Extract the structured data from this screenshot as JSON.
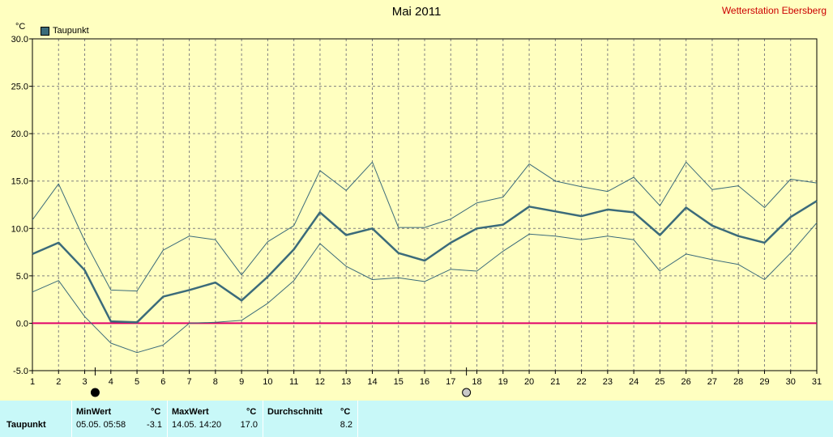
{
  "header": {
    "title": "Mai 2011",
    "station": "Wetterstation Ebersberg",
    "unit": "°C",
    "legend_label": "Taupunkt"
  },
  "colors": {
    "background": "#ffffc0",
    "series": "#3b6b7a",
    "zero_line": "#e0006a",
    "grid": "#808080",
    "stats_bg": "#c8f8f8"
  },
  "chart_data": {
    "type": "line",
    "title": "Mai 2011",
    "ylabel": "°C",
    "ylim": [
      -5,
      30
    ],
    "yticks": [
      "-5.0",
      "0.0",
      "5.0",
      "10.0",
      "15.0",
      "20.0",
      "25.0",
      "30.0"
    ],
    "x": [
      1,
      2,
      3,
      4,
      5,
      6,
      7,
      8,
      9,
      10,
      11,
      12,
      13,
      14,
      15,
      16,
      17,
      18,
      19,
      20,
      21,
      22,
      23,
      24,
      25,
      26,
      27,
      28,
      29,
      30,
      31
    ],
    "xlim": [
      1,
      31
    ],
    "grid": true,
    "series": [
      {
        "name": "Taupunkt",
        "role": "mean",
        "values": [
          7.3,
          8.5,
          5.6,
          0.2,
          0.1,
          2.8,
          3.5,
          4.3,
          2.4,
          4.9,
          7.8,
          11.7,
          9.3,
          10.0,
          7.4,
          6.6,
          8.5,
          10.0,
          10.4,
          12.3,
          11.8,
          11.3,
          12.0,
          11.7,
          9.3,
          12.2,
          10.3,
          9.2,
          8.5,
          11.2,
          12.9
        ]
      },
      {
        "role": "max",
        "values": [
          10.9,
          14.7,
          8.7,
          3.5,
          3.4,
          7.7,
          9.2,
          8.8,
          5.1,
          8.6,
          10.3,
          16.1,
          14.0,
          17.0,
          10.1,
          10.1,
          11.0,
          12.7,
          13.3,
          16.8,
          15.0,
          14.4,
          13.9,
          15.4,
          12.4,
          17.0,
          14.1,
          14.5,
          12.2,
          15.2,
          14.8
        ]
      },
      {
        "role": "min",
        "values": [
          3.3,
          4.5,
          0.7,
          -2.1,
          -3.1,
          -2.3,
          0.0,
          0.1,
          0.3,
          2.1,
          4.5,
          8.4,
          6.0,
          4.6,
          4.8,
          4.4,
          5.7,
          5.5,
          7.6,
          9.4,
          9.2,
          8.8,
          9.2,
          8.8,
          5.5,
          7.3,
          6.7,
          6.2,
          4.6,
          7.4,
          10.6
        ]
      }
    ],
    "moon_markers": [
      {
        "day": 3.4,
        "phase": "new"
      },
      {
        "day": 17.6,
        "phase": "full"
      }
    ]
  },
  "stats": {
    "row_label": "Taupunkt",
    "min_header": "MinWert",
    "min_unit": "°C",
    "min_datetime": "05.05.  05:58",
    "min_value": "-3.1",
    "max_header": "MaxWert",
    "max_unit": "°C",
    "max_datetime": "14.05.  14:20",
    "max_value": "17.0",
    "avg_header": "Durchschnitt",
    "avg_unit": "°C",
    "avg_value": "8.2"
  }
}
